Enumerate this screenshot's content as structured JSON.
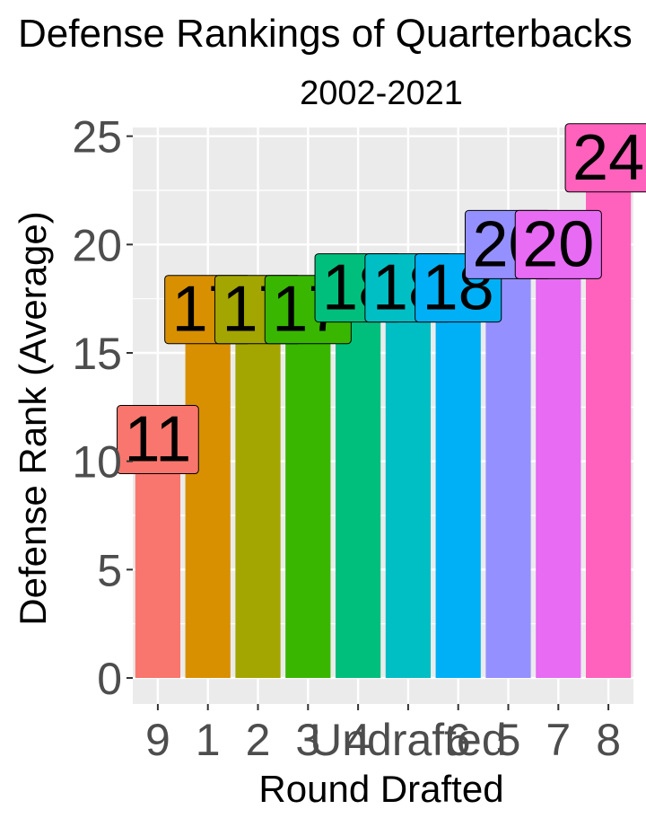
{
  "chart_data": {
    "type": "bar",
    "title": "Defense Rankings of Quarterbacks",
    "subtitle": "2002-2021",
    "xlabel": "Round Drafted",
    "ylabel": "Defense Rank (Average)",
    "categories": [
      "9",
      "1",
      "2",
      "3",
      "4",
      "Undrafted",
      "6",
      "5",
      "7",
      "8"
    ],
    "values": [
      11,
      17,
      17,
      17,
      18,
      18,
      18,
      20,
      20,
      24
    ],
    "labels": [
      "11",
      "17",
      "17",
      "17",
      "18",
      "18",
      "18",
      "20",
      "20",
      "24"
    ],
    "colors": [
      "#F8766D",
      "#D89000",
      "#A3A500",
      "#39B600",
      "#00BF7D",
      "#00BFC4",
      "#00B0F6",
      "#9590FF",
      "#E76BF3",
      "#FF62BC"
    ],
    "yticks": [
      0,
      5,
      10,
      15,
      20,
      25
    ],
    "ylim": [
      -1.2,
      25.4
    ],
    "grid": true,
    "legend": "none"
  }
}
